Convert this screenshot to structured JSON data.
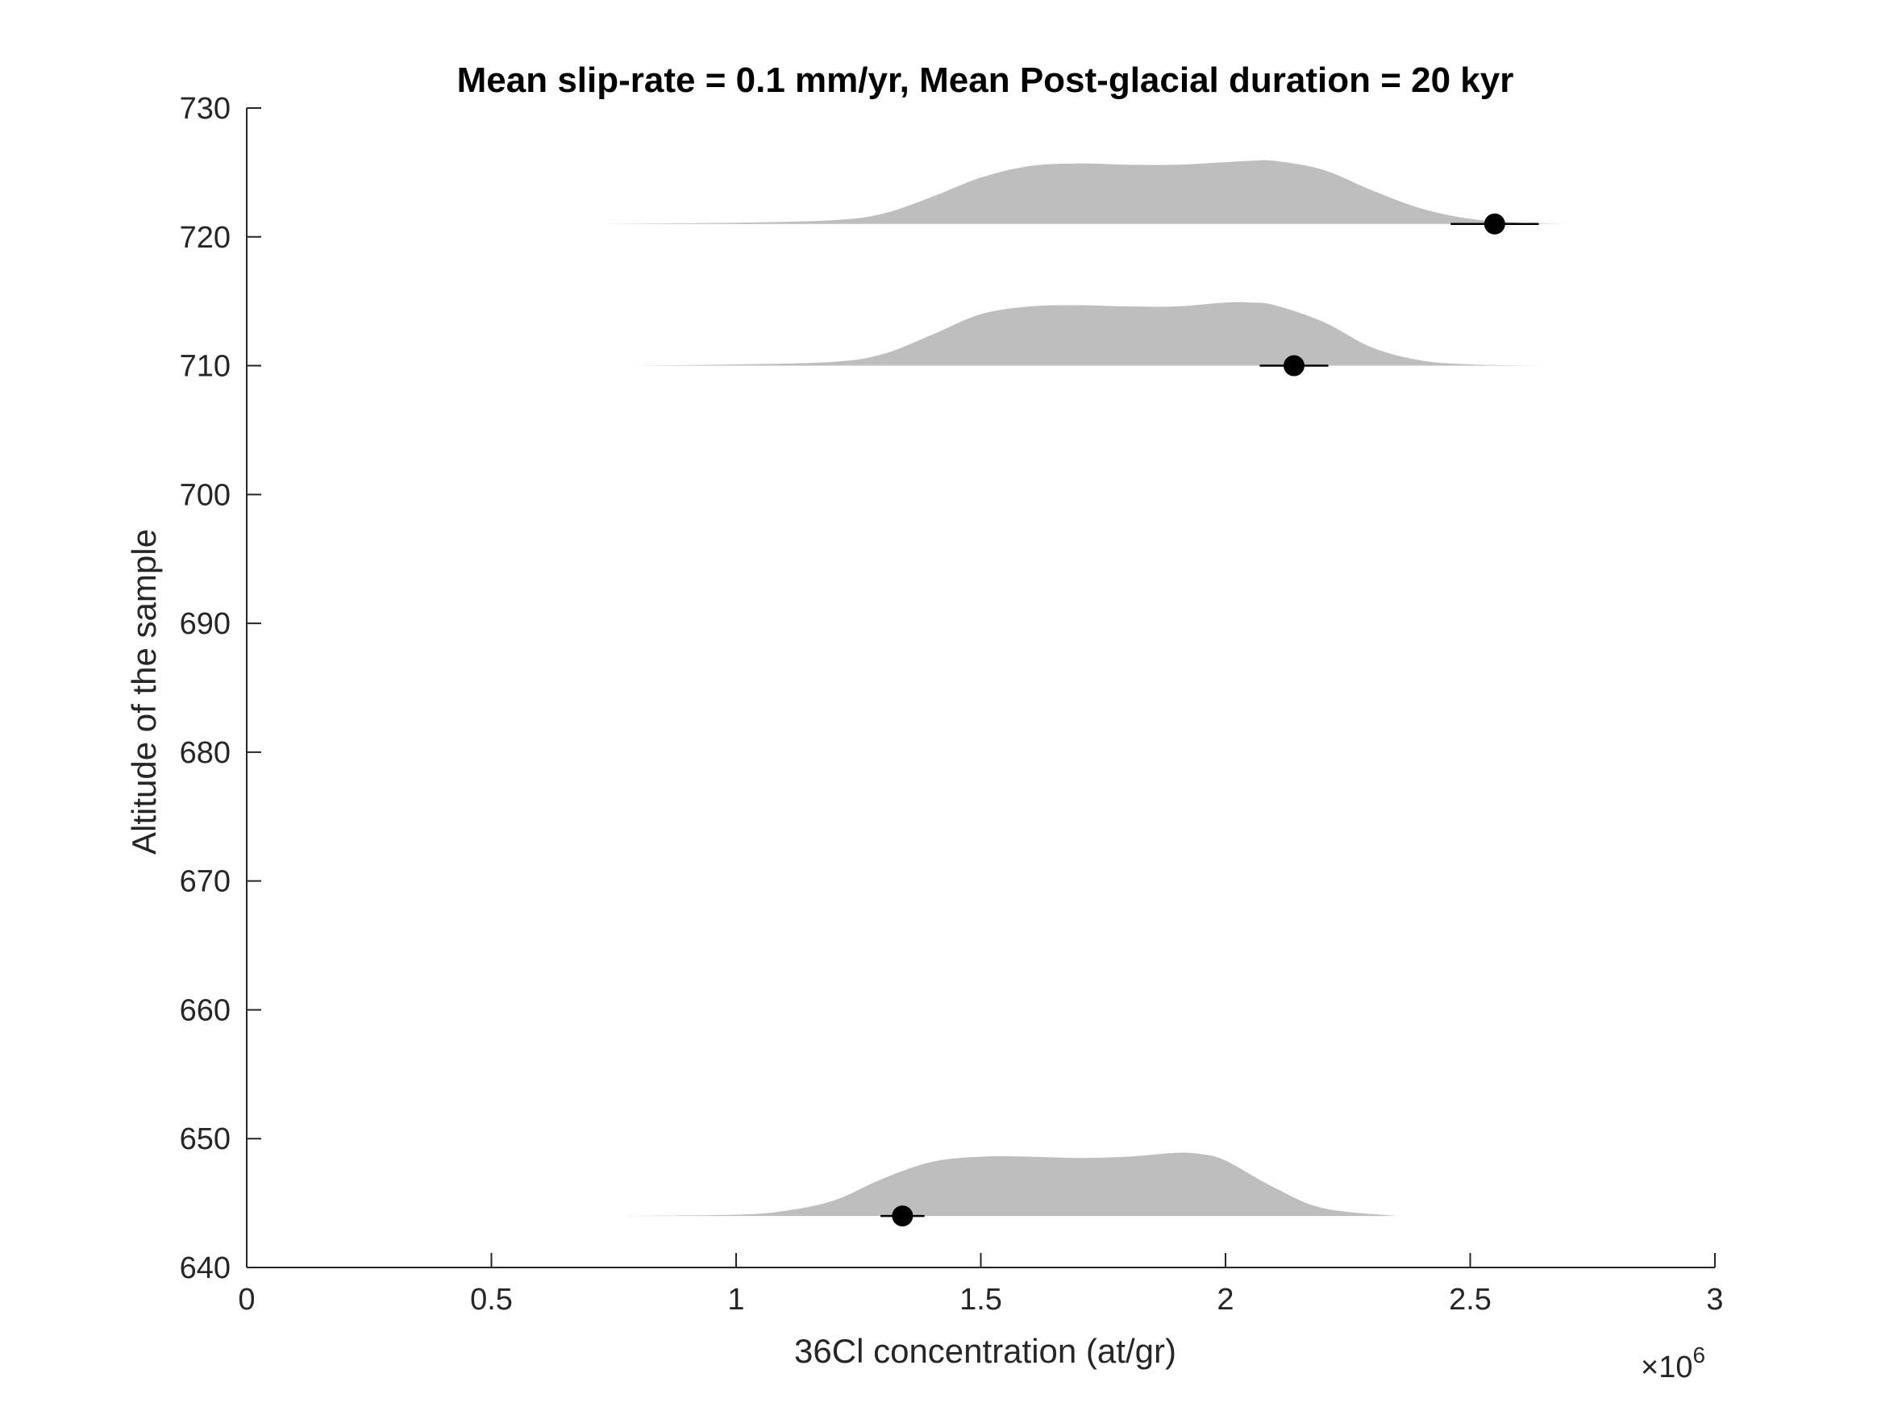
{
  "chart_data": {
    "type": "violin-scatter",
    "title": "Mean slip-rate = 0.1 mm/yr, Mean Post-glacial duration = 20 kyr",
    "xlabel": "36Cl concentration (at/gr)",
    "ylabel": "Altitude of the sample",
    "x_exponent_prefix": "×10",
    "x_exponent_power": "6",
    "xlim": [
      0,
      3
    ],
    "ylim": [
      640,
      730
    ],
    "xticks": [
      0,
      0.5,
      1,
      1.5,
      2,
      2.5,
      3
    ],
    "xtick_labels": [
      "0",
      "0.5",
      "1",
      "1.5",
      "2",
      "2.5",
      "3"
    ],
    "yticks": [
      640,
      650,
      660,
      670,
      680,
      690,
      700,
      710,
      720,
      730
    ],
    "ytick_labels": [
      "640",
      "650",
      "660",
      "670",
      "680",
      "690",
      "700",
      "710",
      "720",
      "730"
    ],
    "distribution_color": "#bebebe",
    "marker_color": "#000000",
    "samples": [
      {
        "altitude": 721,
        "observed": 2.55,
        "error": 0.09,
        "distribution": {
          "x": [
            0.72,
            1.0,
            1.2,
            1.3,
            1.4,
            1.5,
            1.6,
            1.7,
            1.8,
            1.9,
            2.0,
            2.05,
            2.1,
            2.2,
            2.3,
            2.4,
            2.5,
            2.6,
            2.7
          ],
          "height": [
            0,
            0.1,
            0.3,
            0.8,
            2.1,
            3.6,
            4.5,
            4.7,
            4.6,
            4.6,
            4.8,
            4.9,
            4.9,
            4.2,
            2.6,
            1.2,
            0.4,
            0.1,
            0
          ]
        }
      },
      {
        "altitude": 710,
        "observed": 2.14,
        "error": 0.07,
        "distribution": {
          "x": [
            0.77,
            1.0,
            1.2,
            1.3,
            1.4,
            1.5,
            1.6,
            1.7,
            1.8,
            1.9,
            2.0,
            2.05,
            2.1,
            2.2,
            2.3,
            2.4,
            2.5,
            2.65
          ],
          "height": [
            0,
            0.1,
            0.3,
            0.9,
            2.4,
            4.0,
            4.6,
            4.7,
            4.6,
            4.6,
            4.9,
            4.9,
            4.7,
            3.4,
            1.4,
            0.4,
            0.1,
            0
          ]
        }
      },
      {
        "altitude": 644,
        "observed": 1.34,
        "error": 0.045,
        "distribution": {
          "x": [
            0.78,
            1.0,
            1.1,
            1.2,
            1.3,
            1.4,
            1.5,
            1.6,
            1.7,
            1.8,
            1.9,
            1.95,
            2.0,
            2.1,
            2.2,
            2.35
          ],
          "height": [
            0,
            0.1,
            0.4,
            1.2,
            2.9,
            4.2,
            4.6,
            4.6,
            4.5,
            4.6,
            4.9,
            4.8,
            4.3,
            2.2,
            0.6,
            0
          ]
        }
      }
    ]
  }
}
